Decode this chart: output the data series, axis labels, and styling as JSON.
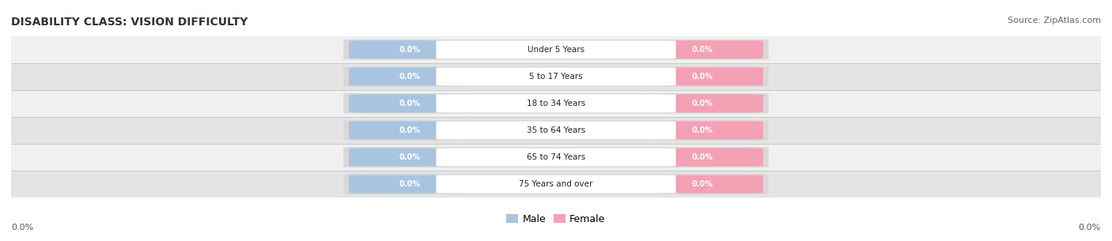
{
  "title": "DISABILITY CLASS: VISION DIFFICULTY",
  "source_text": "Source: ZipAtlas.com",
  "categories": [
    "Under 5 Years",
    "5 to 17 Years",
    "18 to 34 Years",
    "35 to 64 Years",
    "65 to 74 Years",
    "75 Years and over"
  ],
  "male_values": [
    0.0,
    0.0,
    0.0,
    0.0,
    0.0,
    0.0
  ],
  "female_values": [
    0.0,
    0.0,
    0.0,
    0.0,
    0.0,
    0.0
  ],
  "male_color": "#a8c4e0",
  "female_color": "#f4a0b5",
  "male_label": "Male",
  "female_label": "Female",
  "row_bg_colors": [
    "#f0f0f0",
    "#e4e4e4"
  ],
  "bar_bg_color": "#d8d8d8",
  "title_fontsize": 10,
  "source_fontsize": 8,
  "axis_label_left": "0.0%",
  "axis_label_right": "0.0%",
  "background_color": "#ffffff"
}
